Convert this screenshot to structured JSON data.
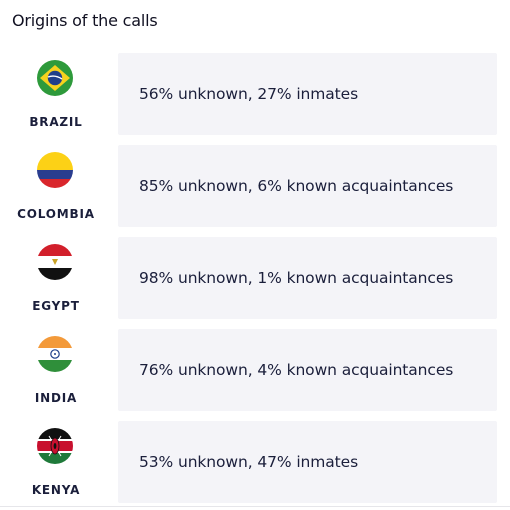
{
  "title": "Origins of the calls",
  "rows": [
    {
      "country": "BRAZIL",
      "flag_icon": "brazil-flag-icon",
      "text": "56% unknown, 27% inmates"
    },
    {
      "country": "COLOMBIA",
      "flag_icon": "colombia-flag-icon",
      "text": "85% unknown, 6% known acquaintances"
    },
    {
      "country": "EGYPT",
      "flag_icon": "egypt-flag-icon",
      "text": "98% unknown, 1% known acquaintances"
    },
    {
      "country": "INDIA",
      "flag_icon": "india-flag-icon",
      "text": "76% unknown, 4% known acquaintances"
    },
    {
      "country": "KENYA",
      "flag_icon": "kenya-flag-icon",
      "text": "53% unknown, 47% inmates"
    }
  ],
  "colors": {
    "card_background": "#f4f4f8",
    "text": "#1b1f3b"
  }
}
